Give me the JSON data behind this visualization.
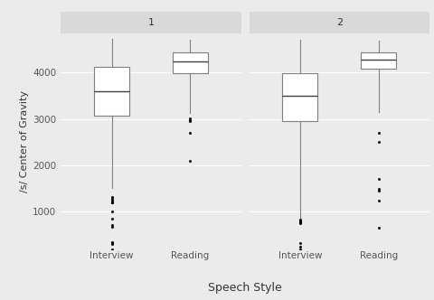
{
  "panel_labels": [
    "1",
    "2"
  ],
  "categories": [
    "Interview",
    "Reading"
  ],
  "xlabel": "Speech Style",
  "ylabel": "/s/ Center of Gravity",
  "yticks": [
    1000,
    2000,
    3000,
    4000
  ],
  "ylim": [
    200,
    4850
  ],
  "background_color": "#ebebeb",
  "plot_bg": "#ebebeb",
  "strip_bg": "#d9d9d9",
  "box_facecolor": "#ffffff",
  "box_edgecolor": "#7f7f7f",
  "median_color": "#404040",
  "whisker_color": "#7f7f7f",
  "flier_color": "#000000",
  "grid_color": "#ffffff",
  "panel1": {
    "interview": {
      "q1": 3080,
      "median": 3600,
      "q3": 4130,
      "whisker_low": 1520,
      "whisker_high": 4720,
      "outliers": [
        1320,
        1280,
        1250,
        1210,
        1200,
        1000,
        850,
        720,
        680,
        350,
        320,
        310,
        200
      ]
    },
    "reading": {
      "q1": 3980,
      "median": 4240,
      "q3": 4430,
      "whisker_low": 3120,
      "whisker_high": 4710,
      "outliers": [
        3020,
        2980,
        2950,
        2700,
        2100
      ]
    }
  },
  "panel2": {
    "interview": {
      "q1": 2950,
      "median": 3500,
      "q3": 3980,
      "whisker_low": 870,
      "whisker_high": 4700,
      "outliers": [
        840,
        820,
        800,
        780,
        760,
        330,
        250,
        200
      ]
    },
    "reading": {
      "q1": 4080,
      "median": 4270,
      "q3": 4440,
      "whisker_low": 3150,
      "whisker_high": 4690,
      "outliers": [
        2700,
        2500,
        1700,
        1500,
        1450,
        1250,
        650
      ]
    }
  }
}
